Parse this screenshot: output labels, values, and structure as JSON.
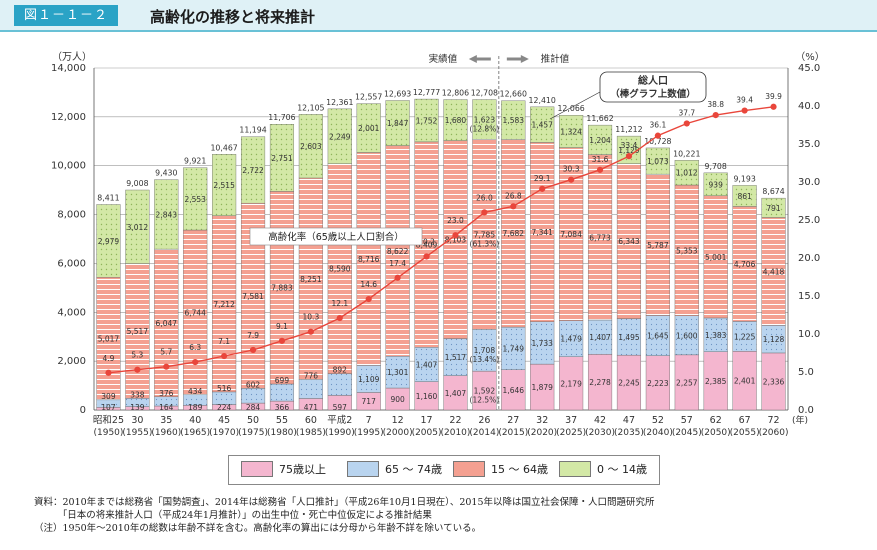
{
  "header": {
    "figure_label": "図１－１－２",
    "title": "高齢化の推移と将来推計"
  },
  "legend": [
    {
      "label": "75歳以上",
      "color": "#f4b6cf"
    },
    {
      "label": "65 ～ 74歳",
      "color": "#b9d4ef"
    },
    {
      "label": "15 ～ 64歳",
      "color": "#f4a091"
    },
    {
      "label": "0 ～ 14歳",
      "color": "#d3e8a6"
    }
  ],
  "notes": [
    "資料：2010年までは総務省「国勢調査」、2014年は総務省「人口推計」（平成26年10月1日現在）、2015年以降は国立社会保障・人口問題研究所",
    "　　　「日本の将来推計人口（平成24年1月推計）」の出生中位・死亡中位仮定による推計結果",
    "（注）1950年～2010年の総数は年齢不詳を含む。高齢化率の算出には分母から年齢不詳を除いている。"
  ],
  "chart_data": {
    "type": "bar",
    "left_unit": "（万人）",
    "right_unit": "（%）",
    "x_unit": "(年)",
    "ylim": [
      0,
      14000
    ],
    "y2lim": [
      0,
      45
    ],
    "left_ticks": [
      "0",
      "2,000",
      "4,000",
      "6,000",
      "8,000",
      "10,000",
      "12,000",
      "14,000"
    ],
    "right_ticks": [
      "0.0",
      "5.0",
      "10.0",
      "15.0",
      "20.0",
      "25.0",
      "30.0",
      "35.0",
      "40.0",
      "45.0"
    ],
    "categories": [
      "昭和25",
      "30",
      "35",
      "40",
      "45",
      "50",
      "55",
      "60",
      "平成2",
      "7",
      "12",
      "17",
      "22",
      "26",
      "27",
      "32",
      "37",
      "42",
      "47",
      "52",
      "57",
      "62",
      "67",
      "72"
    ],
    "years": [
      "(1950)",
      "(1955)",
      "(1960)",
      "(1965)",
      "(1970)",
      "(1975)",
      "(1980)",
      "(1985)",
      "(1990)",
      "(1995)",
      "(2000)",
      "(2005)",
      "(2010)",
      "(2014)",
      "(2015)",
      "(2020)",
      "(2025)",
      "(2030)",
      "(2035)",
      "(2040)",
      "(2045)",
      "(2050)",
      "(2055)",
      "(2060)"
    ],
    "series": [
      {
        "name": "75歳以上",
        "color": "#f4b6cf",
        "values": [
          107,
          139,
          164,
          189,
          224,
          284,
          366,
          471,
          597,
          717,
          900,
          1160,
          1407,
          1592,
          1646,
          1879,
          2179,
          2278,
          2245,
          2223,
          2257,
          2385,
          2401,
          2336
        ]
      },
      {
        "name": "65 ～ 74歳",
        "color": "#b9d4ef",
        "values": [
          309,
          338,
          376,
          434,
          516,
          602,
          699,
          776,
          892,
          1109,
          1301,
          1407,
          1517,
          1708,
          1749,
          1733,
          1479,
          1407,
          1495,
          1645,
          1600,
          1383,
          1225,
          1128
        ]
      },
      {
        "name": "15 ～ 64歳",
        "color": "#f4a091",
        "values": [
          5017,
          5517,
          6047,
          6744,
          7212,
          7581,
          7883,
          8251,
          8590,
          8716,
          8622,
          8409,
          8103,
          7785,
          7682,
          7341,
          7084,
          6773,
          6343,
          5787,
          5353,
          5001,
          4706,
          4418
        ]
      },
      {
        "name": "0 ～ 14歳",
        "color": "#d3e8a6",
        "values": [
          2979,
          3012,
          2843,
          2553,
          2515,
          2722,
          2751,
          2603,
          2249,
          2001,
          1847,
          1752,
          1680,
          1623,
          1583,
          1457,
          1324,
          1204,
          1129,
          1073,
          1012,
          939,
          861,
          791
        ]
      }
    ],
    "totals": [
      8411,
      9008,
      9430,
      9921,
      10467,
      11194,
      11706,
      12105,
      12361,
      12557,
      12693,
      12777,
      12806,
      12708,
      12660,
      12410,
      12066,
      11662,
      11212,
      10728,
      10221,
      9708,
      9193,
      8674
    ],
    "aging_rate": {
      "name": "高齢化率（65歳以上人口割合）",
      "color": "#e9463b",
      "values": [
        4.9,
        5.3,
        5.7,
        6.3,
        7.1,
        7.9,
        9.1,
        10.3,
        12.1,
        14.6,
        17.4,
        20.2,
        23.0,
        26.0,
        26.8,
        29.1,
        30.3,
        31.6,
        33.4,
        36.1,
        37.7,
        38.8,
        39.4,
        39.9
      ]
    },
    "pct_2014": {
      "15 ～ 64歳": "(61.3%)",
      "65 ～ 74歳": "(13.4%)",
      "75歳以上": "(12.5%)",
      "0 ～ 14歳": "(12.8%)"
    },
    "annotations": {
      "actual": "実績値",
      "projection": "推計値",
      "total_label_1": "総人口",
      "total_label_2": "（棒グラフ上数値）",
      "rate_label": "高齢化率（65歳以上人口割合）"
    },
    "grid": true
  }
}
